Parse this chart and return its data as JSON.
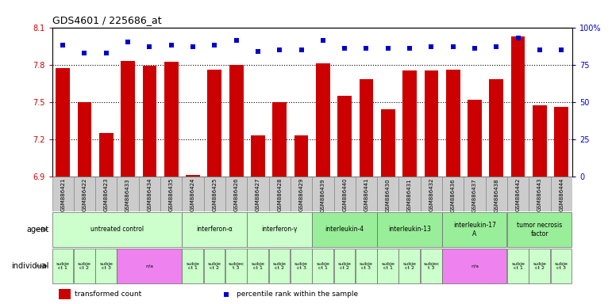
{
  "title": "GDS4601 / 225686_at",
  "samples": [
    "GSM886421",
    "GSM886422",
    "GSM886423",
    "GSM886433",
    "GSM886434",
    "GSM886435",
    "GSM886424",
    "GSM886425",
    "GSM886426",
    "GSM886427",
    "GSM886428",
    "GSM886429",
    "GSM886439",
    "GSM886440",
    "GSM886441",
    "GSM886430",
    "GSM886431",
    "GSM886432",
    "GSM886436",
    "GSM886437",
    "GSM886438",
    "GSM886442",
    "GSM886443",
    "GSM886444"
  ],
  "bar_values": [
    7.77,
    7.5,
    7.25,
    7.83,
    7.79,
    7.82,
    6.91,
    7.76,
    7.8,
    7.23,
    7.5,
    7.23,
    7.81,
    7.55,
    7.68,
    7.44,
    7.75,
    7.75,
    7.76,
    7.52,
    7.68,
    8.03,
    7.47,
    7.46
  ],
  "percentile_values": [
    88,
    83,
    83,
    90,
    87,
    88,
    87,
    88,
    91,
    84,
    85,
    85,
    91,
    86,
    86,
    86,
    86,
    87,
    87,
    86,
    87,
    93,
    85,
    85
  ],
  "ylim_left": [
    6.9,
    8.1
  ],
  "ylim_right": [
    0,
    100
  ],
  "yticks_left": [
    6.9,
    7.2,
    7.5,
    7.8,
    8.1
  ],
  "yticks_right": [
    0,
    25,
    50,
    75,
    100
  ],
  "bar_color": "#cc0000",
  "dot_color": "#0000cc",
  "grid_color": "#000000",
  "sample_bg": "#d3d3d3",
  "agents": [
    {
      "label": "untreated control",
      "start": 0,
      "end": 6,
      "color": "#ccffcc"
    },
    {
      "label": "interferon-α",
      "start": 6,
      "end": 9,
      "color": "#ccffcc"
    },
    {
      "label": "interferon-γ",
      "start": 9,
      "end": 12,
      "color": "#ccffcc"
    },
    {
      "label": "interleukin-4",
      "start": 12,
      "end": 15,
      "color": "#99ee99"
    },
    {
      "label": "interleukin-13",
      "start": 15,
      "end": 18,
      "color": "#99ee99"
    },
    {
      "label": "interleukin-17\nA",
      "start": 18,
      "end": 21,
      "color": "#99ee99"
    },
    {
      "label": "tumor necrosis\nfactor",
      "start": 21,
      "end": 24,
      "color": "#99ee99"
    }
  ],
  "individuals": [
    {
      "label": "subje\nct 1",
      "start": 0,
      "end": 1,
      "color": "#ccffcc"
    },
    {
      "label": "subje\nct 2",
      "start": 1,
      "end": 2,
      "color": "#ccffcc"
    },
    {
      "label": "subje\nct 3",
      "start": 2,
      "end": 3,
      "color": "#ccffcc"
    },
    {
      "label": "n/a",
      "start": 3,
      "end": 6,
      "color": "#ee82ee"
    },
    {
      "label": "subje\nct 1",
      "start": 6,
      "end": 7,
      "color": "#ccffcc"
    },
    {
      "label": "subje\nct 2",
      "start": 7,
      "end": 8,
      "color": "#ccffcc"
    },
    {
      "label": "subjec\nt 3",
      "start": 8,
      "end": 9,
      "color": "#ccffcc"
    },
    {
      "label": "subje\nct 1",
      "start": 9,
      "end": 10,
      "color": "#ccffcc"
    },
    {
      "label": "subje\nct 2",
      "start": 10,
      "end": 11,
      "color": "#ccffcc"
    },
    {
      "label": "subje\nct 3",
      "start": 11,
      "end": 12,
      "color": "#ccffcc"
    },
    {
      "label": "subje\nct 1",
      "start": 12,
      "end": 13,
      "color": "#ccffcc"
    },
    {
      "label": "subje\nct 2",
      "start": 13,
      "end": 14,
      "color": "#ccffcc"
    },
    {
      "label": "subje\nct 3",
      "start": 14,
      "end": 15,
      "color": "#ccffcc"
    },
    {
      "label": "subje\nct 1",
      "start": 15,
      "end": 16,
      "color": "#ccffcc"
    },
    {
      "label": "subje\nct 2",
      "start": 16,
      "end": 17,
      "color": "#ccffcc"
    },
    {
      "label": "subjec\nt 3",
      "start": 17,
      "end": 18,
      "color": "#ccffcc"
    },
    {
      "label": "n/a",
      "start": 18,
      "end": 21,
      "color": "#ee82ee"
    },
    {
      "label": "subje\nct 1",
      "start": 21,
      "end": 22,
      "color": "#ccffcc"
    },
    {
      "label": "subje\nct 2",
      "start": 22,
      "end": 23,
      "color": "#ccffcc"
    },
    {
      "label": "subje\nct 3",
      "start": 23,
      "end": 24,
      "color": "#ccffcc"
    }
  ],
  "legend_items": [
    {
      "color": "#cc0000",
      "label": "transformed count"
    },
    {
      "color": "#0000cc",
      "label": "percentile rank within the sample"
    }
  ]
}
